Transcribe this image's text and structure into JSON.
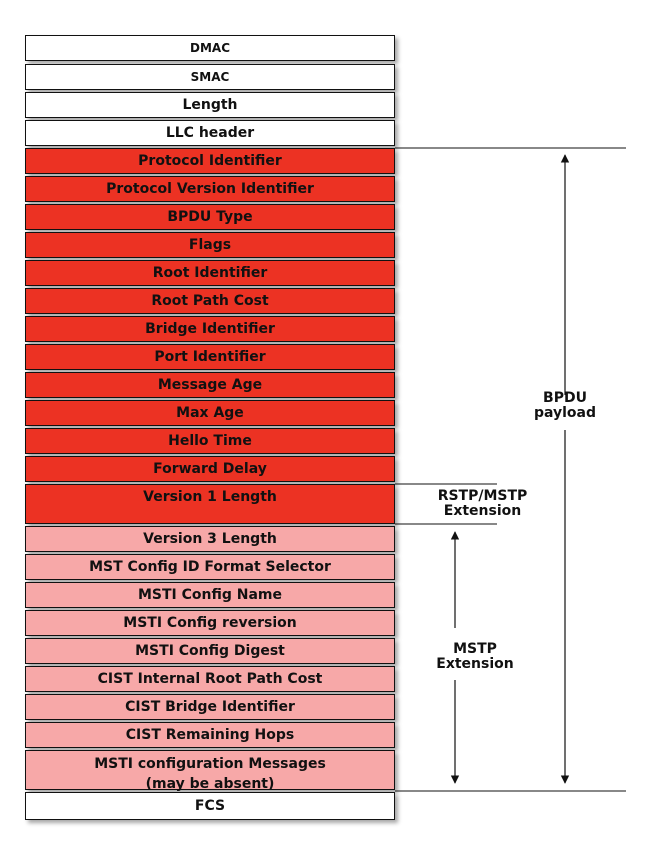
{
  "frames": [
    {
      "label": "DMAC",
      "style": "plain"
    },
    {
      "label": "SMAC",
      "style": "plain"
    },
    {
      "label": "Length",
      "style": "plain"
    },
    {
      "label": "LLC header",
      "style": "plain"
    },
    {
      "label": "Protocol Identifier",
      "style": "red"
    },
    {
      "label": "Protocol Version Identifier",
      "style": "red"
    },
    {
      "label": "BPDU Type",
      "style": "red"
    },
    {
      "label": "Flags",
      "style": "red"
    },
    {
      "label": "Root Identifier",
      "style": "red"
    },
    {
      "label": "Root Path Cost",
      "style": "red"
    },
    {
      "label": "Bridge Identifier",
      "style": "red"
    },
    {
      "label": "Port Identifier",
      "style": "red"
    },
    {
      "label": "Message Age",
      "style": "red"
    },
    {
      "label": "Max Age",
      "style": "red"
    },
    {
      "label": "Hello Time",
      "style": "red"
    },
    {
      "label": "Forward Delay",
      "style": "red"
    },
    {
      "label": "Version 1 Length",
      "style": "red"
    },
    {
      "label": "Version 3 Length",
      "style": "pink"
    },
    {
      "label": "MST Config ID Format Selector",
      "style": "pink"
    },
    {
      "label": "MSTI Config Name",
      "style": "pink"
    },
    {
      "label": "MSTI Config reversion",
      "style": "pink"
    },
    {
      "label": "MSTI Config Digest",
      "style": "pink"
    },
    {
      "label": "CIST Internal Root Path Cost",
      "style": "pink"
    },
    {
      "label": "CIST Bridge Identifier",
      "style": "pink"
    },
    {
      "label": "CIST Remaining Hops",
      "style": "pink"
    },
    {
      "label": "MSTI configuration Messages",
      "sublabel": "(may be absent)",
      "style": "pink"
    },
    {
      "label": "FCS",
      "style": "plain"
    }
  ],
  "annotations": {
    "bpdu": {
      "line1": "BPDU",
      "line2": "payload"
    },
    "rstp": {
      "line1": "RSTP/MSTP",
      "line2": "Extension"
    },
    "mstp": {
      "line1": "MSTP",
      "line2": "Extension"
    }
  },
  "colors": {
    "red": "#ec3223",
    "pink": "#f7a8a8",
    "plain": "#ffffff",
    "line": "#111111"
  }
}
